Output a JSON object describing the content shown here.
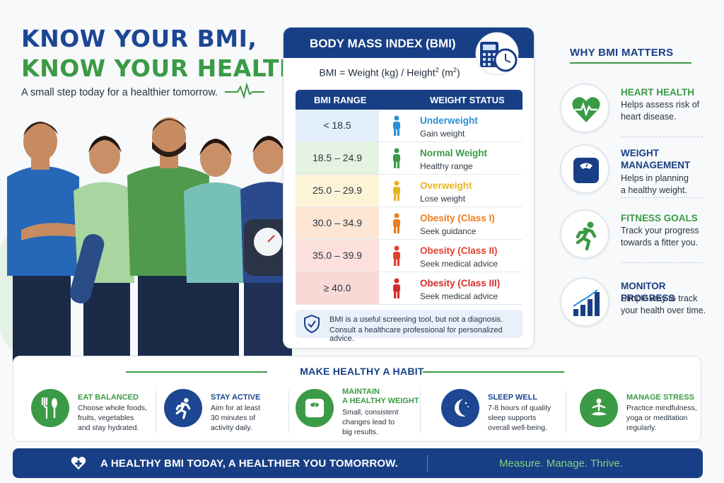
{
  "headline": {
    "line1": "KNOW YOUR BMI,",
    "line2": "KNOW YOUR HEALTH",
    "tagline": "A small step today for a healthier tomorrow."
  },
  "bmi_card": {
    "title": "BODY MASS INDEX (BMI)",
    "formula_prefix": "BMI = Weight (kg) / Height",
    "formula_sup": "2",
    "formula_suffix": " (m",
    "formula_sup2": "2",
    "formula_end": ")",
    "table": {
      "col1": "BMI RANGE",
      "col2": "WEIGHT STATUS",
      "rows": [
        {
          "range": "< 18.5",
          "status": "Underweight",
          "advice": "Gain weight",
          "color": "#2a8fd6",
          "bg": "#e3f0fb"
        },
        {
          "range": "18.5 – 24.9",
          "status": "Normal Weight",
          "advice": "Healthy range",
          "color": "#3b9a45",
          "bg": "#e5f3e2"
        },
        {
          "range": "25.0 – 29.9",
          "status": "Overweight",
          "advice": "Lose weight",
          "color": "#e7b421",
          "bg": "#fdf4d8"
        },
        {
          "range": "30.0 – 34.9",
          "status": "Obesity (Class I)",
          "advice": "Seek guidance",
          "color": "#ec7d1f",
          "bg": "#fde6d3"
        },
        {
          "range": "35.0 – 39.9",
          "status": "Obesity (Class II)",
          "advice": "Seek medical advice",
          "color": "#e0412f",
          "bg": "#fbe0dc"
        },
        {
          "range": "≥ 40.0",
          "status": "Obesity (Class III)",
          "advice": "Seek medical advice",
          "color": "#d52d2d",
          "bg": "#f9d9d6"
        }
      ]
    },
    "note_line1": "BMI is a useful screening tool, but not a diagnosis.",
    "note_line2": "Consult a healthcare professional for personalized advice."
  },
  "why": {
    "title": "WHY BMI MATTERS",
    "items": [
      {
        "head1": "HEART HEALTH",
        "head2": "",
        "desc1": "Helps assess risk of",
        "desc2": "heart disease.",
        "color": "#3b9a45",
        "icon": "heart-pulse-icon"
      },
      {
        "head1": "WEIGHT",
        "head2": "MANAGEMENT",
        "desc1": "Helps in planning",
        "desc2": "a healthy weight.",
        "color": "#183f85",
        "icon": "scale-icon"
      },
      {
        "head1": "FITNESS GOALS",
        "head2": "",
        "desc1": "Track your progress",
        "desc2": "towards a fitter you.",
        "color": "#3b9a45",
        "icon": "runner-icon"
      },
      {
        "head1": "MONITOR PROGRESS",
        "head2": "",
        "desc1": "Simple way to track",
        "desc2": "your health over time.",
        "color": "#183f85",
        "icon": "bar-chart-icon"
      }
    ]
  },
  "habits": {
    "title": "MAKE HEALTHY A HABIT",
    "items": [
      {
        "head1": "EAT BALANCED",
        "head2": "",
        "d1": "Choose whole foods,",
        "d2": "fruits, vegetables",
        "d3": "and stay hydrated.",
        "color": "#3b9a45",
        "icon": "utensils-icon"
      },
      {
        "head1": "STAY ACTIVE",
        "head2": "",
        "d1": "Aim for at least",
        "d2": "30 minutes of",
        "d3": "activity daily.",
        "color": "#1d4693",
        "icon": "runner-icon"
      },
      {
        "head1": "MAINTAIN",
        "head2": "A HEALTHY WEIGHT",
        "d1": "Small, consistent",
        "d2": "changes lead to",
        "d3": "big results.",
        "color": "#3b9a45",
        "icon": "scale-icon"
      },
      {
        "head1": "SLEEP WELL",
        "head2": "",
        "d1": "7-8 hours of quality",
        "d2": "sleep supports",
        "d3": "overall well-being.",
        "color": "#1d4693",
        "icon": "moon-icon"
      },
      {
        "head1": "MANAGE STRESS",
        "head2": "",
        "d1": "Practice mindfulness,",
        "d2": "yoga or meditation",
        "d3": "regularly.",
        "color": "#3b9a45",
        "icon": "meditation-icon"
      }
    ]
  },
  "footer": {
    "text": "A HEALTHY BMI TODAY, A HEALTHIER YOU TOMORROW.",
    "slogan": "Measure. Manage. Thrive."
  }
}
